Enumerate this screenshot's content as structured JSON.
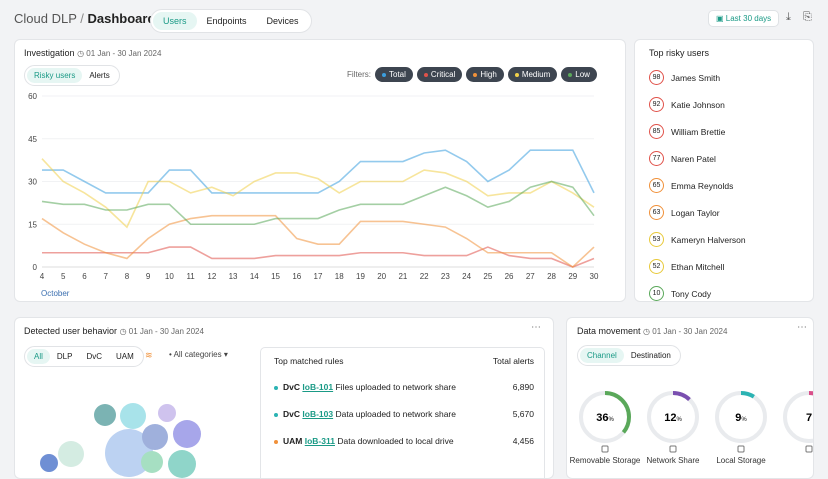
{
  "header": {
    "brand": "Cloud DLP",
    "separator": "/",
    "page": "Dashboards",
    "tabs": [
      "Users",
      "Endpoints",
      "Devices"
    ],
    "date_range": "Last 30 days"
  },
  "investigation": {
    "title": "Investigation",
    "date": "01 Jan - 30 Jan 2024",
    "toggles": [
      "Risky users",
      "Alerts"
    ],
    "filters_label": "Filters:",
    "chart": {
      "type": "line",
      "x": [
        4,
        5,
        6,
        7,
        8,
        9,
        10,
        11,
        12,
        13,
        14,
        15,
        16,
        17,
        18,
        19,
        20,
        21,
        22,
        23,
        24,
        25,
        26,
        27,
        28,
        29,
        30
      ],
      "x_label": "October",
      "ylim": [
        0,
        60
      ],
      "yticks": [
        0,
        15,
        30,
        45,
        60
      ],
      "grid": true,
      "series": [
        {
          "name": "Total",
          "color": "#3b9ede",
          "values": [
            34,
            34,
            30,
            26,
            26,
            26,
            34,
            34,
            26,
            26,
            26,
            26,
            26,
            26,
            30,
            37,
            37,
            37,
            40,
            41,
            37,
            30,
            34,
            41,
            41,
            41,
            26
          ]
        },
        {
          "name": "Critical",
          "color": "#e0524a",
          "values": [
            5,
            5,
            5,
            5,
            5,
            5,
            7,
            7,
            3,
            3,
            3,
            4,
            4,
            4,
            4,
            5,
            5,
            5,
            4,
            4,
            4,
            7,
            4,
            3,
            3,
            0,
            3
          ]
        },
        {
          "name": "High",
          "color": "#f0913a",
          "values": [
            17,
            12,
            8,
            5,
            3,
            10,
            15,
            17,
            18,
            18,
            18,
            18,
            10,
            8,
            8,
            16,
            16,
            16,
            15,
            14,
            10,
            5,
            5,
            5,
            5,
            0,
            7
          ]
        },
        {
          "name": "Medium",
          "color": "#f0d04a",
          "values": [
            38,
            30,
            26,
            21,
            14,
            30,
            30,
            26,
            28,
            25,
            30,
            33,
            33,
            31,
            26,
            30,
            30,
            30,
            34,
            33,
            30,
            25,
            26,
            26,
            30,
            26,
            21
          ]
        },
        {
          "name": "Low",
          "color": "#5aa85a",
          "values": [
            23,
            22,
            22,
            20,
            20,
            22,
            22,
            15,
            15,
            15,
            15,
            17,
            17,
            17,
            20,
            22,
            22,
            22,
            25,
            28,
            25,
            21,
            23,
            28,
            30,
            28,
            18
          ]
        }
      ]
    }
  },
  "risky_users": {
    "title": "Top risky users",
    "users": [
      {
        "score": 98,
        "name": "James Smith",
        "color": "#e0524a"
      },
      {
        "score": 92,
        "name": "Katie Johnson",
        "color": "#e0524a"
      },
      {
        "score": 85,
        "name": "William Brettie",
        "color": "#e0524a"
      },
      {
        "score": 77,
        "name": "Naren Patel",
        "color": "#e0524a"
      },
      {
        "score": 65,
        "name": "Emma Reynolds",
        "color": "#f0913a"
      },
      {
        "score": 63,
        "name": "Logan Taylor",
        "color": "#f0913a"
      },
      {
        "score": 53,
        "name": "Kameryn Halverson",
        "color": "#e8c93a"
      },
      {
        "score": 52,
        "name": "Ethan Mitchell",
        "color": "#e8c93a"
      },
      {
        "score": 10,
        "name": "Tony Cody",
        "color": "#5aa85a"
      }
    ]
  },
  "behavior": {
    "title": "Detected user behavior",
    "date": "01 Jan - 30 Jan 2024",
    "tabs": [
      "All",
      "DLP",
      "DvC",
      "UAM"
    ],
    "category_filter": "All categories",
    "rules": {
      "header": [
        "Top matched rules",
        "Total alerts"
      ],
      "rows": [
        {
          "channel": "DvC",
          "id": "IoB-101",
          "description": "Files uploaded to network share",
          "alerts": "6,890",
          "color": "#2bb3b3"
        },
        {
          "channel": "DvC",
          "id": "IoB-103",
          "description": "Data uploaded to network share",
          "alerts": "5,670",
          "color": "#2bb3b3"
        },
        {
          "channel": "UAM",
          "id": "IoB-311",
          "description": "Data downloaded to local drive",
          "alerts": "4,456",
          "color": "#f0913a"
        }
      ]
    }
  },
  "movement": {
    "title": "Data movement",
    "date": "01 Jan - 30 Jan 2024",
    "tabs": [
      "Channel",
      "Destination"
    ],
    "items": [
      {
        "value": 36,
        "unit": "%",
        "label": "Removable Storage",
        "color": "#5aa85a"
      },
      {
        "value": 12,
        "unit": "%",
        "label": "Network Share",
        "color": "#7a4fb0"
      },
      {
        "value": 9,
        "unit": "%",
        "label": "Local Storage",
        "color": "#2bb3b3"
      },
      {
        "value": 7,
        "color": "#d94f8a"
      }
    ]
  }
}
